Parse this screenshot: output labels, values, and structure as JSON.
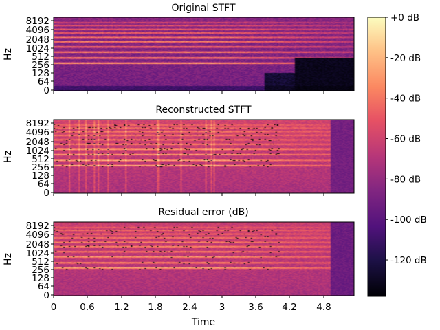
{
  "chart_data": [
    {
      "type": "heatmap",
      "title": "Original STFT",
      "ylabel": "Hz",
      "yticks": [
        "0",
        "64",
        "128",
        "256",
        "512",
        "1024",
        "2048",
        "4096",
        "8192"
      ],
      "xticks": [],
      "variant": "original"
    },
    {
      "type": "heatmap",
      "title": "Reconstructed STFT",
      "ylabel": "Hz",
      "yticks": [
        "0",
        "64",
        "128",
        "256",
        "512",
        "1024",
        "2048",
        "4096",
        "8192"
      ],
      "xticks": [],
      "variant": "reconstructed"
    },
    {
      "type": "heatmap",
      "title": "Residual error (dB)",
      "ylabel": "Hz",
      "xlabel": "Time",
      "yticks": [
        "0",
        "64",
        "128",
        "256",
        "512",
        "1024",
        "2048",
        "4096",
        "8192"
      ],
      "xticks": [
        "0",
        "0.6",
        "1.2",
        "1.8",
        "2.4",
        "3",
        "3.6",
        "4.2",
        "4.8"
      ],
      "xlim": [
        0,
        5.3
      ],
      "variant": "residual"
    }
  ],
  "colorbar": {
    "colormap": "magma",
    "ticks": [
      "+0 dB",
      "-20 dB",
      "-40 dB",
      "-60 dB",
      "-80 dB",
      "-100 dB",
      "-120 dB"
    ],
    "tick_values": [
      0,
      -20,
      -40,
      -60,
      -80,
      -100,
      -120
    ],
    "range": [
      -138,
      0
    ]
  }
}
